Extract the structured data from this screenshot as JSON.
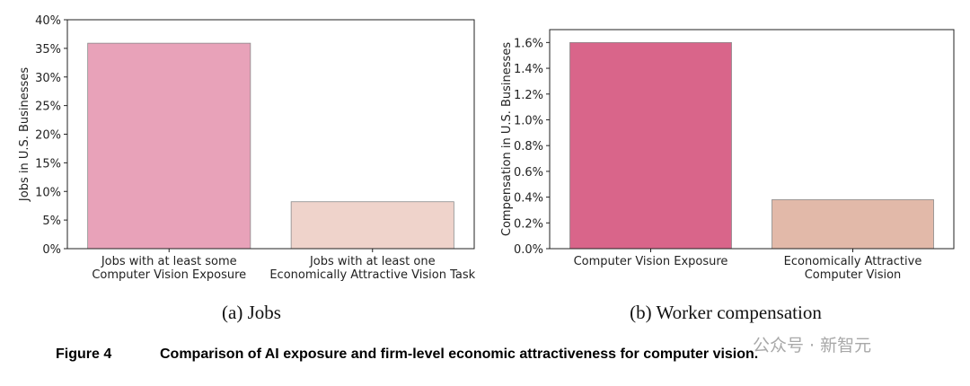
{
  "chart_data": [
    {
      "type": "bar",
      "ylabel": "Jobs in U.S. Businesses",
      "categories": [
        "Jobs with at least some\nComputer Vision Exposure",
        "Jobs with at least one\nEconomically Attractive Vision Task"
      ],
      "values": [
        35.9,
        8.2
      ],
      "colors": [
        "#e8a2b9",
        "#efd3cb"
      ],
      "ylim": [
        0,
        40
      ],
      "yticks": [
        {
          "value": 0,
          "label": "0%"
        },
        {
          "value": 5,
          "label": "5%"
        },
        {
          "value": 10,
          "label": "10%"
        },
        {
          "value": 15,
          "label": "15%"
        },
        {
          "value": 20,
          "label": "20%"
        },
        {
          "value": 25,
          "label": "25%"
        },
        {
          "value": 30,
          "label": "30%"
        },
        {
          "value": 35,
          "label": "35%"
        },
        {
          "value": 40,
          "label": "40%"
        }
      ],
      "caption": "(a) Jobs"
    },
    {
      "type": "bar",
      "ylabel": "Compensation in U.S. Businesses",
      "categories": [
        "Computer Vision Exposure",
        "Economically Attractive\nComputer Vision"
      ],
      "values": [
        1.6,
        0.38
      ],
      "colors": [
        "#d9658a",
        "#e2b9a9"
      ],
      "ylim": [
        0,
        1.7
      ],
      "yticks": [
        {
          "value": 0,
          "label": "0.0%"
        },
        {
          "value": 0.2,
          "label": "0.2%"
        },
        {
          "value": 0.4,
          "label": "0.4%"
        },
        {
          "value": 0.6,
          "label": "0.6%"
        },
        {
          "value": 0.8,
          "label": "0.8%"
        },
        {
          "value": 1.0,
          "label": "1.0%"
        },
        {
          "value": 1.2,
          "label": "1.2%"
        },
        {
          "value": 1.4,
          "label": "1.4%"
        },
        {
          "value": 1.6,
          "label": "1.6%"
        }
      ],
      "caption": "(b) Worker compensation"
    }
  ],
  "figure_caption": {
    "label": "Figure 4",
    "text": "Comparison of AI exposure and firm-level economic attractiveness for computer vision."
  },
  "watermark": "公众号 · 新智元"
}
